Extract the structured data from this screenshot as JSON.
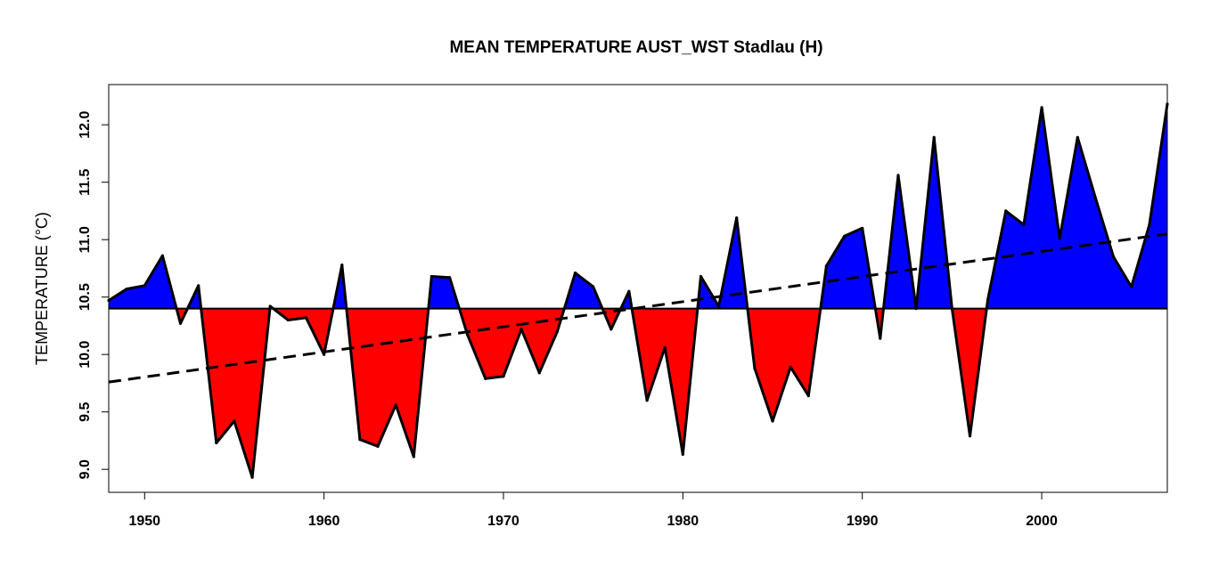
{
  "chart_data": {
    "type": "area",
    "title": "MEAN TEMPERATURE AUST_WST Stadlau  (H)",
    "xlabel": "",
    "ylabel": "TEMPERATURE (°C)",
    "xlim": [
      1948,
      2007
    ],
    "ylim": [
      8.8,
      12.35
    ],
    "xticks": [
      "1950",
      "1960",
      "1970",
      "1980",
      "1990",
      "2000"
    ],
    "yticks": [
      "9.0",
      "9.5",
      "10.0",
      "10.5",
      "11.0",
      "11.5",
      "12.0"
    ],
    "baseline": 10.4,
    "colors": {
      "above": "#0000ff",
      "below": "#ff0000",
      "line": "#000000"
    },
    "trend": {
      "style": "dashed",
      "x": [
        1948,
        2007
      ],
      "y": [
        9.76,
        11.05
      ]
    },
    "series": [
      {
        "x": [
          1948,
          1949,
          1950,
          1951,
          1952,
          1953,
          1954,
          1955,
          1956,
          1957,
          1958,
          1959,
          1960,
          1961,
          1962,
          1963,
          1964,
          1965,
          1966,
          1967,
          1968,
          1969,
          1970,
          1971,
          1972,
          1973,
          1974,
          1975,
          1976,
          1977,
          1978,
          1979,
          1980,
          1981,
          1982,
          1983,
          1984,
          1985,
          1986,
          1987,
          1988,
          1989,
          1990,
          1991,
          1992,
          1993,
          1994,
          1995,
          1996,
          1997,
          1998,
          1999,
          2000,
          2001,
          2002,
          2003,
          2004,
          2005,
          2006,
          2007
        ],
        "values": [
          10.47,
          10.57,
          10.6,
          10.86,
          10.27,
          10.6,
          9.23,
          9.42,
          8.93,
          10.42,
          10.3,
          10.32,
          10.0,
          10.78,
          9.26,
          9.2,
          9.56,
          9.11,
          10.68,
          10.67,
          10.17,
          9.79,
          9.81,
          10.22,
          9.84,
          10.2,
          10.71,
          10.59,
          10.22,
          10.55,
          9.6,
          10.06,
          9.13,
          10.68,
          10.42,
          11.19,
          9.88,
          9.42,
          9.89,
          9.64,
          10.77,
          11.03,
          11.1,
          10.14,
          11.56,
          10.4,
          11.89,
          10.4,
          9.29,
          10.48,
          11.25,
          11.13,
          12.15,
          11.01,
          11.89,
          11.36,
          10.85,
          10.59,
          11.13,
          12.18
        ]
      }
    ]
  }
}
